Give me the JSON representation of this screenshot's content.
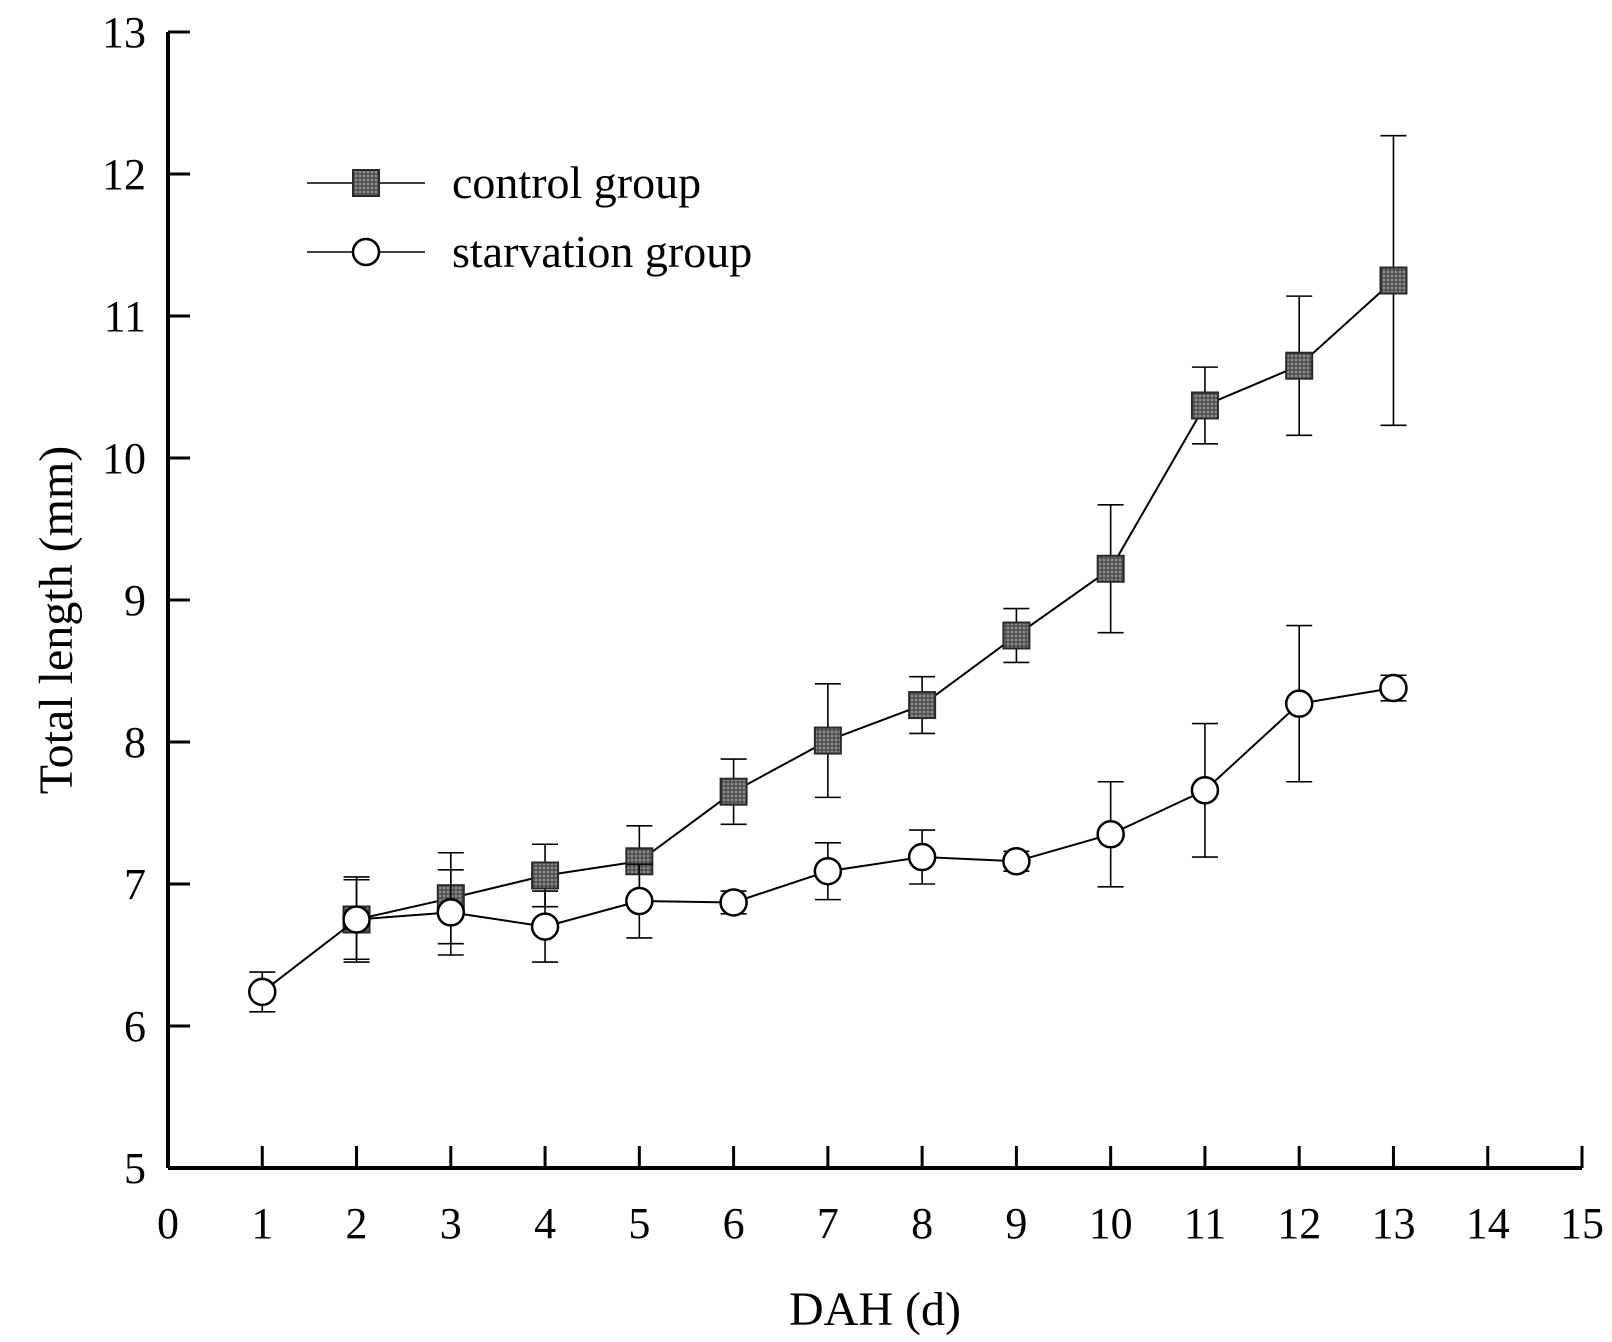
{
  "chart_data": {
    "type": "line",
    "title": "",
    "xlabel": "DAH (d)",
    "ylabel": "Total length (mm)",
    "xlim": [
      0,
      15
    ],
    "ylim": [
      5,
      13
    ],
    "x_ticks": [
      "0",
      "1",
      "2",
      "3",
      "4",
      "5",
      "6",
      "7",
      "8",
      "9",
      "10",
      "11",
      "12",
      "13",
      "14",
      "15"
    ],
    "y_ticks": [
      "5",
      "6",
      "7",
      "8",
      "9",
      "10",
      "11",
      "12",
      "13"
    ],
    "grid": false,
    "legend_position": "top-left",
    "series": [
      {
        "name": "control group",
        "marker": "square",
        "color": "#666666",
        "x": [
          2,
          3,
          4,
          5,
          6,
          7,
          8,
          9,
          10,
          11,
          12,
          13
        ],
        "y": [
          6.75,
          6.9,
          7.06,
          7.16,
          7.65,
          8.01,
          8.26,
          8.75,
          9.22,
          10.37,
          10.65,
          11.25
        ],
        "err": [
          0.28,
          0.32,
          0.22,
          0.25,
          0.23,
          0.4,
          0.2,
          0.19,
          0.45,
          0.27,
          0.49,
          1.02
        ]
      },
      {
        "name": "starvation group",
        "marker": "circle",
        "color": "#ffffff",
        "x": [
          1,
          2,
          3,
          4,
          5,
          6,
          7,
          8,
          9,
          10,
          11,
          12,
          13
        ],
        "y": [
          6.24,
          6.75,
          6.8,
          6.7,
          6.88,
          6.87,
          7.09,
          7.19,
          7.16,
          7.35,
          7.66,
          8.27,
          8.38
        ],
        "err": [
          0.14,
          0.3,
          0.3,
          0.25,
          0.26,
          0.08,
          0.2,
          0.19,
          0.07,
          0.37,
          0.47,
          0.55,
          0.09
        ]
      }
    ]
  }
}
